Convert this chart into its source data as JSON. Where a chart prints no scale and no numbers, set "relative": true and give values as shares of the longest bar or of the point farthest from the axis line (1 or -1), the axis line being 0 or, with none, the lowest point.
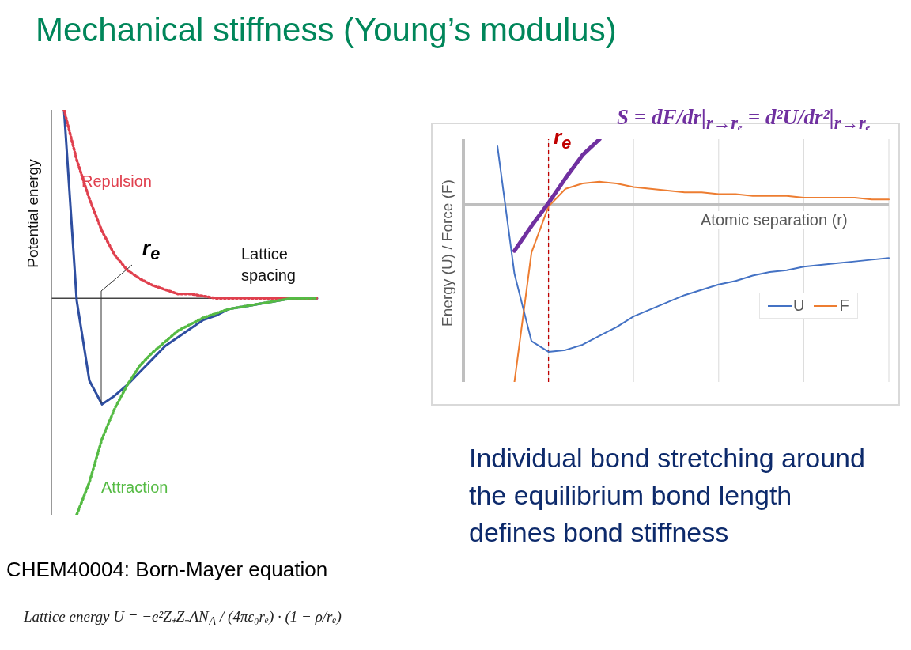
{
  "chart_data": [
    {
      "type": "line",
      "title": "Mechanical stiffness (Young’s modulus)",
      "ylabel": "Potential energy",
      "relative": true,
      "grid": false,
      "legend": false,
      "categories": [
        null,
        null,
        null,
        null,
        null,
        null,
        null,
        null,
        null,
        null,
        null,
        null,
        null,
        null,
        null,
        null,
        null,
        null,
        null,
        null,
        null,
        null
      ],
      "series": [
        {
          "color": "#2e4ea0",
          "line_style": "solid",
          "values": [
            null,
            0.87,
            -0.01,
            -0.38,
            -0.49,
            -0.45,
            -0.4,
            -0.34,
            -0.28,
            -0.22,
            -0.18,
            -0.14,
            -0.1,
            -0.08,
            -0.05,
            -0.04,
            -0.03,
            -0.02,
            -0.01,
            0,
            0,
            0
          ]
        },
        {
          "name": "Repulsion",
          "color": "#e0404e",
          "line_style": "dotted",
          "values": [
            null,
            0.87,
            0.64,
            0.46,
            0.31,
            0.2,
            0.13,
            0.09,
            0.06,
            0.04,
            0.02,
            0.02,
            0.01,
            0,
            0,
            0,
            0,
            0,
            0,
            0,
            0,
            0
          ]
        },
        {
          "name": "Attraction",
          "color": "#55bb44",
          "line_style": "dotted",
          "values": [
            null,
            null,
            -1,
            -0.85,
            -0.65,
            -0.51,
            -0.4,
            -0.31,
            -0.25,
            -0.2,
            -0.15,
            -0.12,
            -0.09,
            -0.07,
            -0.05,
            -0.04,
            -0.03,
            -0.02,
            -0.01,
            0,
            0,
            0
          ]
        }
      ],
      "annotations": [
        "r$_{e}$",
        "Lattice spacing",
        "CHEM40004: Born-Mayer equation",
        "Lattice energy  U = −e²Z₊Z₋AN$_{A}$ / (4πε₀rₑ) · (1 − ρ/rₑ)"
      ]
    },
    {
      "type": "line",
      "xlabel": "Atomic separation (r)",
      "ylabel": "Energy (U) / Force (F)",
      "relative": true,
      "grid": true,
      "legend": "bottom right",
      "categories": [
        null,
        null,
        null,
        null,
        null,
        null,
        null,
        null,
        null,
        null,
        null,
        null,
        null,
        null,
        null,
        null,
        null,
        null,
        null,
        null,
        null,
        null,
        null,
        null,
        null,
        null
      ],
      "series": [
        {
          "name": "U",
          "color": "#4472c4",
          "values": [
            null,
            null,
            0.33,
            -0.39,
            -0.77,
            -0.83,
            -0.82,
            -0.79,
            -0.74,
            -0.69,
            -0.63,
            -0.59,
            -0.55,
            -0.51,
            -0.48,
            -0.45,
            -0.43,
            -0.4,
            -0.38,
            -0.37,
            -0.35,
            -0.34,
            -0.33,
            -0.32,
            -0.31,
            -0.3
          ]
        },
        {
          "name": "F",
          "color": "#ed7d31",
          "values": [
            null,
            null,
            null,
            -1,
            -0.27,
            -0.01,
            0.09,
            0.12,
            0.13,
            0.12,
            0.1,
            0.09,
            0.08,
            0.07,
            0.07,
            0.06,
            0.06,
            0.05,
            0.05,
            0.05,
            0.04,
            0.04,
            0.04,
            0.04,
            0.03,
            0.03
          ]
        },
        {
          "type": "line",
          "color": "#7030a0",
          "values": [
            null,
            null,
            null,
            -0.26,
            -0.12,
            0.01,
            0.15,
            0.28,
            0.37,
            null,
            null,
            null,
            null,
            null,
            null,
            null,
            null,
            null,
            null,
            null,
            null,
            null,
            null,
            null,
            null,
            null
          ]
        }
      ],
      "annotations": [
        "r$_{e}$",
        "S = dF/dr|$_{r→rₑ}$ = d²U/dr²|$_{r→rₑ}$",
        "Individual bond stretching around the equilibrium bond length defines bond stiffness"
      ]
    }
  ]
}
